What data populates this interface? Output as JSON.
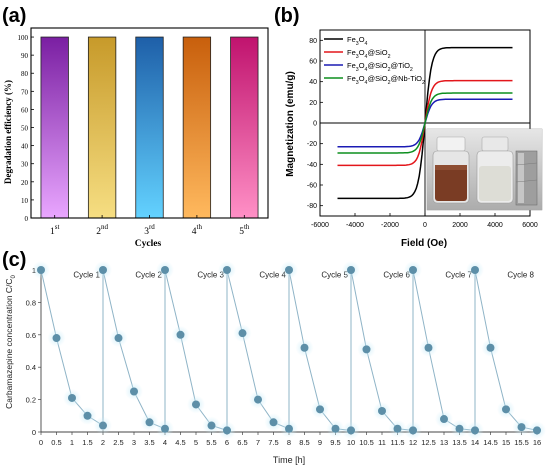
{
  "panels": {
    "a": {
      "tag": "(a)"
    },
    "b": {
      "tag": "(b)"
    },
    "c": {
      "tag": "(c)"
    }
  },
  "chart_data": [
    {
      "type": "bar",
      "title": "",
      "xlabel": "Cycles",
      "ylabel": "Degradation efficiency (%)",
      "ylim": [
        0,
        105
      ],
      "yticks": [
        "0",
        "10",
        "20",
        "30",
        "40",
        "50",
        "60",
        "70",
        "80",
        "90",
        "100"
      ],
      "categories": [
        {
          "main": "1",
          "sup": "st"
        },
        {
          "main": "2",
          "sup": "nd"
        },
        {
          "main": "3",
          "sup": "rd"
        },
        {
          "main": "4",
          "sup": "th"
        },
        {
          "main": "5",
          "sup": "th"
        }
      ],
      "values": [
        100,
        100,
        100,
        100,
        100
      ],
      "colors": [
        [
          "#7a1fa2",
          "#e9a6ff"
        ],
        [
          "#c79a2a",
          "#f6de82"
        ],
        [
          "#1e5fa8",
          "#63d2ff"
        ],
        [
          "#c85f0c",
          "#ffb95e"
        ],
        [
          "#c0136e",
          "#ff90c6"
        ]
      ],
      "grid": false
    },
    {
      "type": "line",
      "title": "",
      "xlabel": "Field (Oe)",
      "ylabel": "Magnetization (emu/g)",
      "xlim": [
        -6000,
        6000
      ],
      "ylim": [
        -90,
        90
      ],
      "xticks": [
        "-6000",
        "-4000",
        "-2000",
        "0",
        "2000",
        "4000",
        "6000"
      ],
      "yticks": [
        "-80",
        "-60",
        "-40",
        "-20",
        "0",
        "20",
        "40",
        "60",
        "80"
      ],
      "legend_position": "top-left",
      "series": [
        {
          "name": "Fe3O4",
          "ms": 73,
          "color": "#000000",
          "label_parts": [
            {
              "t": "Fe"
            },
            {
              "t": "3",
              "s": "sub"
            },
            {
              "t": "O"
            },
            {
              "t": "4",
              "s": "sub"
            }
          ]
        },
        {
          "name": "Fe3O4@SiO2",
          "ms": 41,
          "color": "#e3161b",
          "label_parts": [
            {
              "t": "Fe"
            },
            {
              "t": "3",
              "s": "sub"
            },
            {
              "t": "O"
            },
            {
              "t": "4",
              "s": "sub"
            },
            {
              "t": "@SiO"
            },
            {
              "t": "2",
              "s": "sub"
            }
          ]
        },
        {
          "name": "Fe3O4@SiO2@TiO2",
          "ms": 23,
          "color": "#1b1bb4",
          "label_parts": [
            {
              "t": "Fe"
            },
            {
              "t": "3",
              "s": "sub"
            },
            {
              "t": "O"
            },
            {
              "t": "4",
              "s": "sub"
            },
            {
              "t": "@SiO"
            },
            {
              "t": "2",
              "s": "sub"
            },
            {
              "t": "@TiO"
            },
            {
              "t": "2",
              "s": "sub"
            }
          ]
        },
        {
          "name": "Fe3O4@SiO2@Nb-TiO2",
          "ms": 29,
          "color": "#0d8f1f",
          "label_parts": [
            {
              "t": "Fe"
            },
            {
              "t": "3",
              "s": "sub"
            },
            {
              "t": "O"
            },
            {
              "t": "4",
              "s": "sub"
            },
            {
              "t": "@SiO"
            },
            {
              "t": "2",
              "s": "sub"
            },
            {
              "t": "@Nb-TiO"
            },
            {
              "t": "2",
              "s": "sub"
            }
          ]
        }
      ],
      "field_range": [
        -5000,
        5000
      ],
      "inset": "photo of two vials and a magnet"
    },
    {
      "type": "line",
      "title": "",
      "xlabel": "Time [h]",
      "ylabel_parts": [
        {
          "t": "Carbamazepine concentration C/C"
        },
        {
          "t": "0",
          "s": "sub"
        }
      ],
      "xlim": [
        0,
        16
      ],
      "ylim": [
        0,
        1
      ],
      "xticks": [
        "0",
        "0.5",
        "1",
        "1.5",
        "2",
        "2.5",
        "3",
        "3.5",
        "4",
        "4.5",
        "5",
        "5.5",
        "6",
        "6.5",
        "7",
        "7.5",
        "8",
        "8.5",
        "9",
        "9.5",
        "10",
        "10.5",
        "11",
        "11.5",
        "12",
        "12.5",
        "13",
        "13.5",
        "14",
        "14.5",
        "15",
        "15.5",
        "16"
      ],
      "yticks": [
        "0",
        "0.2",
        "0.4",
        "0.6",
        "0.8",
        "1"
      ],
      "cycle_labels": [
        "Cycle 1",
        "Cycle 2",
        "Cycle 3",
        "Cycle 4",
        "Cycle 5",
        "Cycle 6",
        "Cycle 7",
        "Cycle 8"
      ],
      "cycle_boundaries": [
        2,
        4,
        6,
        8,
        10,
        12,
        14
      ],
      "x": [
        0,
        0.5,
        1,
        1.5,
        2,
        2,
        2.5,
        3,
        3.5,
        4,
        4,
        4.5,
        5,
        5.5,
        6,
        6,
        6.5,
        7,
        7.5,
        8,
        8,
        8.5,
        9,
        9.5,
        10,
        10,
        10.5,
        11,
        11.5,
        12,
        12,
        12.5,
        13,
        13.5,
        14,
        14,
        14.5,
        15,
        15.5,
        16
      ],
      "y": [
        1,
        0.58,
        0.21,
        0.1,
        0.04,
        1,
        0.58,
        0.25,
        0.06,
        0.02,
        1,
        0.6,
        0.17,
        0.04,
        0.01,
        1,
        0.61,
        0.2,
        0.06,
        0.02,
        1,
        0.52,
        0.14,
        0.02,
        0.01,
        1,
        0.51,
        0.13,
        0.02,
        0.01,
        1,
        0.52,
        0.08,
        0.02,
        0.01,
        1,
        0.52,
        0.14,
        0.03,
        0.01
      ],
      "color": "#5d8fa8",
      "grid": false
    }
  ]
}
